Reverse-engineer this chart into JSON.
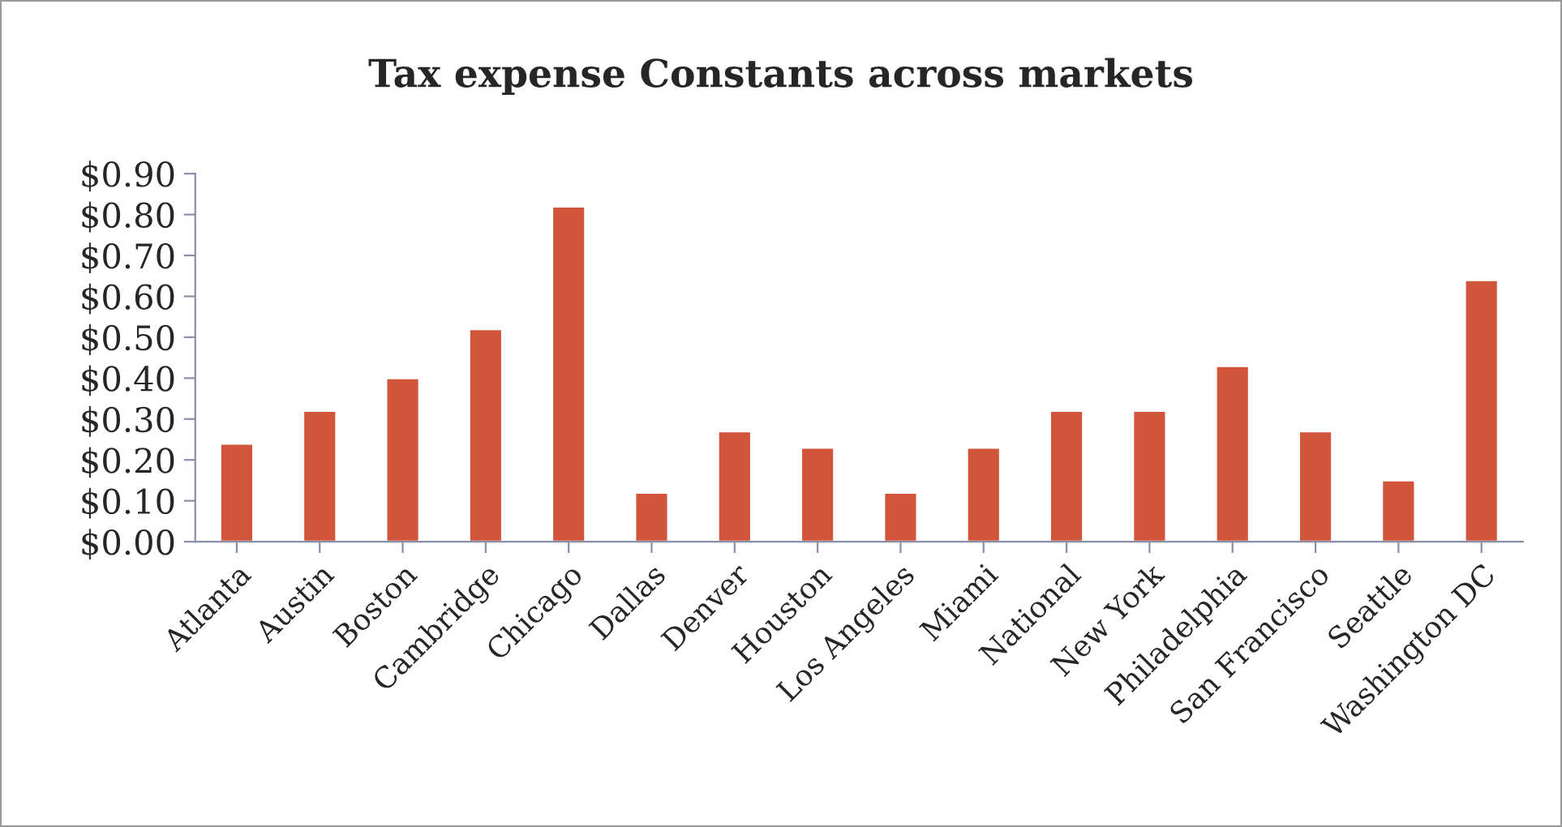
{
  "chart_data": {
    "type": "bar",
    "title": "Tax expense Constants across markets",
    "categories": [
      "Atlanta",
      "Austin",
      "Boston",
      "Cambridge",
      "Chicago",
      "Dallas",
      "Denver",
      "Houston",
      "Los Angeles",
      "Miami",
      "National",
      "New York",
      "Philadelphia",
      "San Francisco",
      "Seattle",
      "Washington DC"
    ],
    "values": [
      0.24,
      0.32,
      0.4,
      0.52,
      0.82,
      0.12,
      0.27,
      0.23,
      0.12,
      0.23,
      0.32,
      0.32,
      0.43,
      0.27,
      0.15,
      0.64
    ],
    "color": "#d0553a",
    "ylim": [
      0,
      0.9
    ],
    "yticks": [
      {
        "value": 0,
        "label": "$0.00"
      },
      {
        "value": 0.1,
        "label": "$0.10"
      },
      {
        "value": 0.2,
        "label": "$0.20"
      },
      {
        "value": 0.3,
        "label": "$0.30"
      },
      {
        "value": 0.4,
        "label": "$0.40"
      },
      {
        "value": 0.5,
        "label": "$0.50"
      },
      {
        "value": 0.6,
        "label": "$0.60"
      },
      {
        "value": 0.7,
        "label": "$0.70"
      },
      {
        "value": 0.8,
        "label": "$0.80"
      },
      {
        "value": 0.9,
        "label": "$0.90"
      }
    ],
    "grid": false,
    "legend": false
  }
}
